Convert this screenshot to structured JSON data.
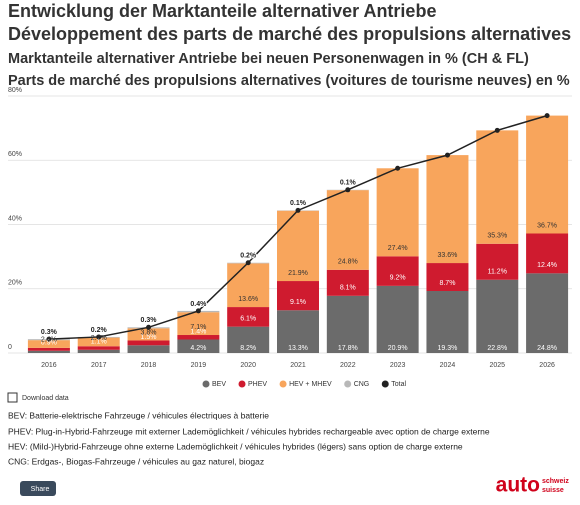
{
  "chart_data": {
    "type": "stacked-bar",
    "title": [
      "Entwicklung der Marktanteile alternativer Antriebe",
      "Développement des parts de marché des propulsions alternatives"
    ],
    "subtitle": [
      "Marktanteile alternativer Antriebe bei neuen Personenwagen in % (CH & FL)",
      "Parts de marché des propulsions alternatives (voitures de tourisme neuves) en %"
    ],
    "categories": [
      "2016",
      "2017",
      "2018",
      "2019",
      "2020",
      "2021",
      "2022",
      "2023",
      "2024",
      "2025",
      "2026"
    ],
    "series": [
      {
        "name": "BEV",
        "color": "#6b6b6b",
        "values": [
          0.7,
          1.0,
          2.4,
          4.2,
          8.2,
          13.3,
          17.8,
          20.9,
          19.3,
          22.8,
          24.8
        ],
        "value_labels": [
          null,
          null,
          null,
          "4.2%",
          "8.2%",
          "13.3%",
          "17.8%",
          "20.9%",
          "19.3%",
          "22.8%",
          "24.8%"
        ]
      },
      {
        "name": "PHEV",
        "color": "#cf1b2f",
        "values": [
          0.9,
          1.1,
          1.5,
          1.4,
          6.1,
          9.1,
          8.1,
          9.2,
          8.7,
          11.2,
          12.4
        ],
        "value_labels": [
          "0.9%",
          "1.1%",
          "1.5%",
          "1.4%",
          "6.1%",
          "9.1%",
          "8.1%",
          "9.2%",
          "8.7%",
          "11.2%",
          "12.4%"
        ]
      },
      {
        "name": "HEV + MHEV",
        "color": "#f8a55c",
        "values": [
          2.4,
          2.7,
          3.8,
          7.1,
          13.6,
          21.9,
          24.8,
          27.4,
          33.6,
          35.3,
          36.7
        ],
        "value_labels": [
          "2.4%",
          "2.7%",
          "3.8%",
          "7.1%",
          "13.6%",
          "21.9%",
          "24.8%",
          "27.4%",
          "33.6%",
          "35.3%",
          "36.7%"
        ]
      },
      {
        "name": "CNG",
        "color": "#b8b8b8",
        "values": [
          0.3,
          0.2,
          0.3,
          0.4,
          0.2,
          0.1,
          0.1,
          null,
          null,
          null,
          null
        ],
        "value_labels": [
          "0.3%",
          "0.2%",
          "0.3%",
          "0.4%",
          "0.2%",
          "0.1%",
          "0.1%",
          null,
          null,
          null,
          null
        ]
      },
      {
        "name": "Total",
        "color": "#222222",
        "type": "line",
        "values": [
          4.3,
          5.0,
          8.0,
          13.1,
          28.1,
          44.4,
          50.8,
          57.5,
          61.6,
          69.3,
          73.9
        ]
      }
    ],
    "ylim": [
      0,
      80
    ],
    "yticks": [
      0,
      {
        "value": 20,
        "label": "20%"
      },
      {
        "value": 40,
        "label": "40%"
      },
      {
        "value": 60,
        "label": "60%"
      },
      {
        "value": 80,
        "label": "80%"
      }
    ],
    "grid": true
  },
  "download_label": "Download data",
  "notes": [
    "BEV: Batterie-elektrische Fahrzeuge / véhicules électriques à batterie",
    "PHEV: Plug-in-Hybrid-Fahrzeuge mit externer Lademöglichkeit / véhicules hybrides rechargeable avec option de charge externe",
    "HEV: (Mild-)Hybrid-Fahrzeuge ohne externe Lademöglichkeit / véhicules hybrides (légers) sans option de charge externe",
    "CNG: Erdgas-, Biogas-Fahrzeuge / véhicules au gaz naturel, biogaz"
  ],
  "share_label": "Share",
  "logo": {
    "main": "auto",
    "line1": "schweiz",
    "line2": "suisse"
  }
}
